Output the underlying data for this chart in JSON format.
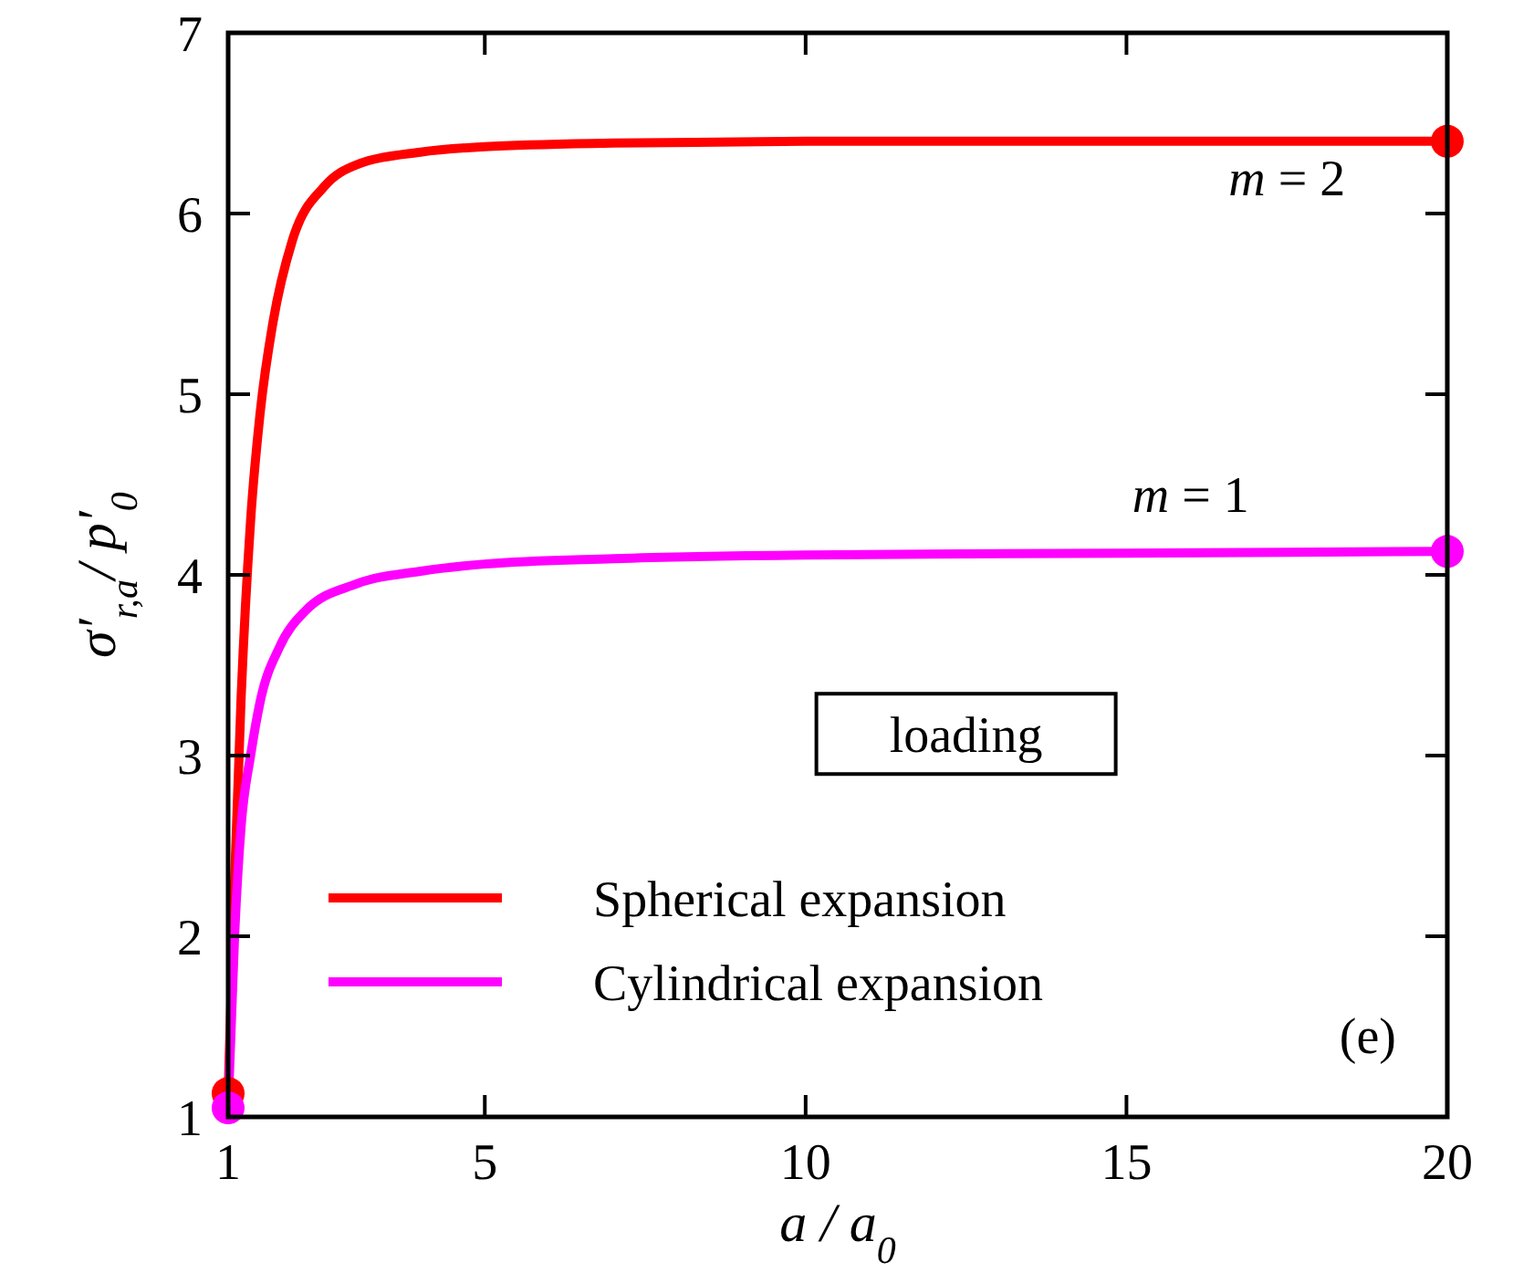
{
  "chart_data": {
    "type": "line",
    "xlabel": "a / a$_{0}$",
    "ylabel": "σ′$_{r,a}$/ p′$_{0}$",
    "xlim": [
      1,
      20
    ],
    "ylim": [
      1,
      7
    ],
    "xticks": [
      1,
      5,
      10,
      15,
      20
    ],
    "yticks": [
      1,
      2,
      3,
      4,
      5,
      6,
      7
    ],
    "grid": false,
    "legend": "bottom left",
    "line_style": "solid",
    "marker": "none",
    "series": [
      {
        "name": "Spherical expansion",
        "color": "#ff0000",
        "x": [
          1,
          1.1,
          1.2,
          1.35,
          1.5,
          1.7,
          2,
          2.5,
          3,
          4,
          5,
          7,
          10,
          15,
          20
        ],
        "values": [
          1.13,
          2.3,
          3.3,
          4.3,
          4.9,
          5.4,
          5.85,
          6.15,
          6.27,
          6.34,
          6.37,
          6.39,
          6.4,
          6.4,
          6.4
        ]
      },
      {
        "name": "Cylindrical expansion",
        "color": "#ff00ff",
        "x": [
          1,
          1.1,
          1.2,
          1.35,
          1.5,
          1.8,
          2.2,
          3,
          4,
          5,
          7,
          10,
          15,
          20
        ],
        "values": [
          1.05,
          2.0,
          2.6,
          3.0,
          3.3,
          3.6,
          3.8,
          3.95,
          4.02,
          4.06,
          4.09,
          4.11,
          4.12,
          4.13
        ]
      },
      {
        "type": "scatter",
        "marker": "circle",
        "color": "#ff0000",
        "x": [
          1,
          20
        ],
        "values": [
          1.13,
          6.4
        ]
      },
      {
        "type": "scatter",
        "marker": "circle",
        "color": "#ff00ff",
        "x": [
          1,
          20
        ],
        "values": [
          1.05,
          4.13
        ]
      }
    ],
    "annotations": [
      "m = 2",
      "m = 1",
      "loading",
      "(e)"
    ]
  }
}
